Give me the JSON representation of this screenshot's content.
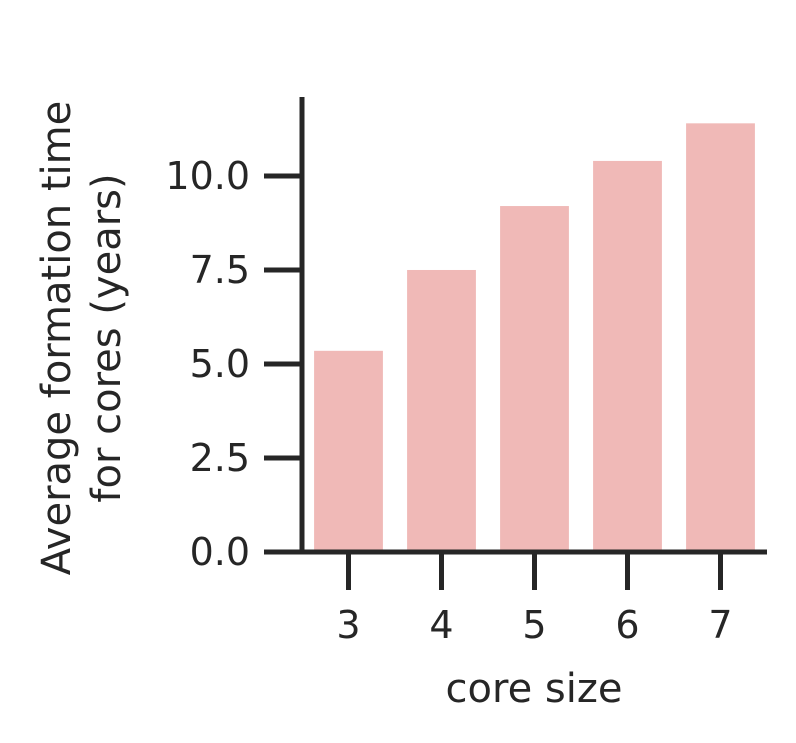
{
  "chart_data": {
    "type": "bar",
    "categories": [
      "3",
      "4",
      "5",
      "6",
      "7"
    ],
    "values": [
      5.35,
      7.5,
      9.2,
      10.4,
      11.4
    ],
    "xlabel": "core size",
    "ylabel_lines": [
      "Average formation time",
      "for cores (years)"
    ],
    "ylim": [
      0,
      12.1
    ],
    "yticks": [
      0.0,
      2.5,
      5.0,
      7.5,
      10.0
    ],
    "ytick_labels": [
      "0.0",
      "2.5",
      "5.0",
      "7.5",
      "10.0"
    ],
    "grid": false,
    "legend": "none",
    "colors": {
      "bar": "#f0b9b7",
      "axis": "#262626",
      "text": "#262626"
    }
  }
}
